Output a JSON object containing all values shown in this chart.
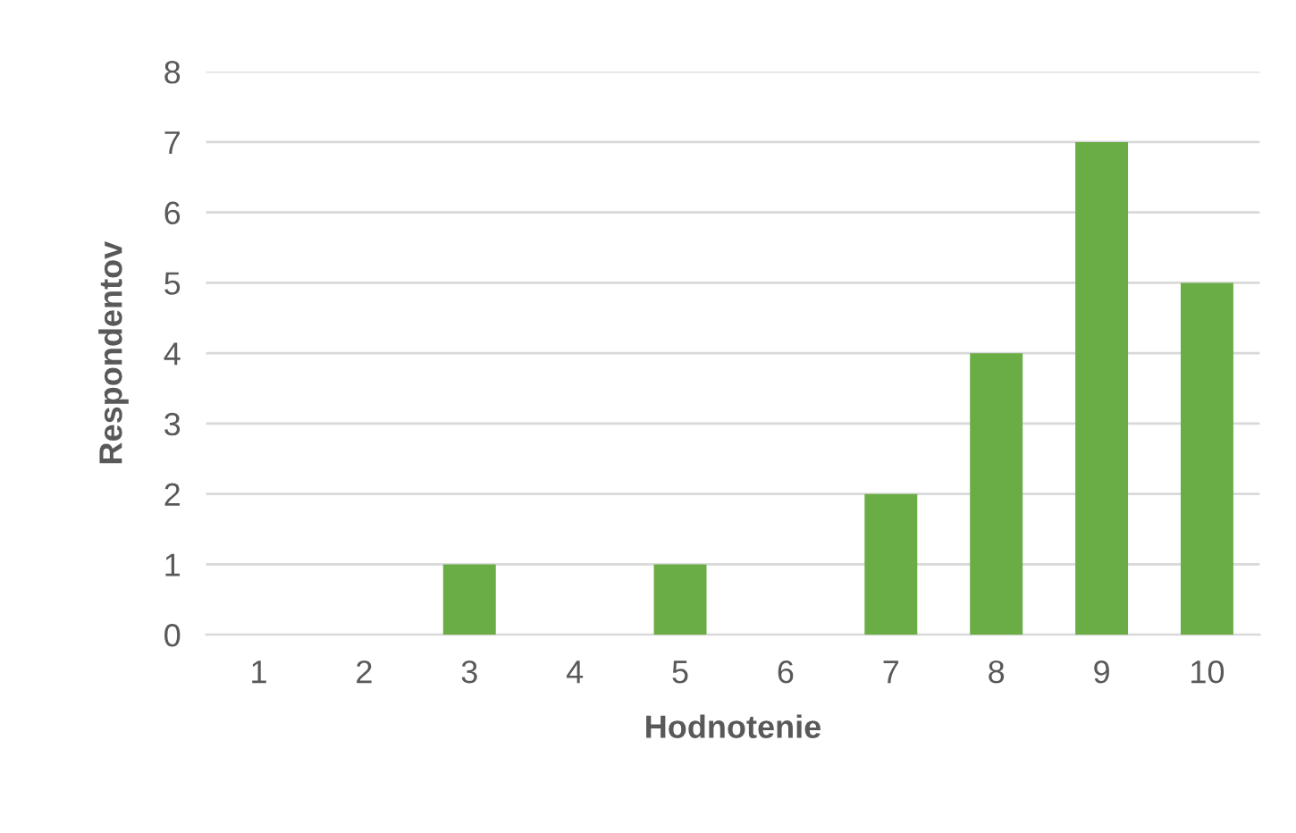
{
  "chart_data": {
    "type": "bar",
    "xlabel": "Hodnotenie",
    "ylabel": "Respondentov",
    "categories": [
      "1",
      "2",
      "3",
      "4",
      "5",
      "6",
      "7",
      "8",
      "9",
      "10"
    ],
    "values": [
      0,
      0,
      1,
      0,
      1,
      0,
      2,
      4,
      7,
      5
    ],
    "color": "#6aad45",
    "ylim": [
      0,
      8
    ],
    "yticks": [
      0,
      1,
      2,
      3,
      4,
      5,
      6,
      7,
      8
    ],
    "grid": "y"
  }
}
